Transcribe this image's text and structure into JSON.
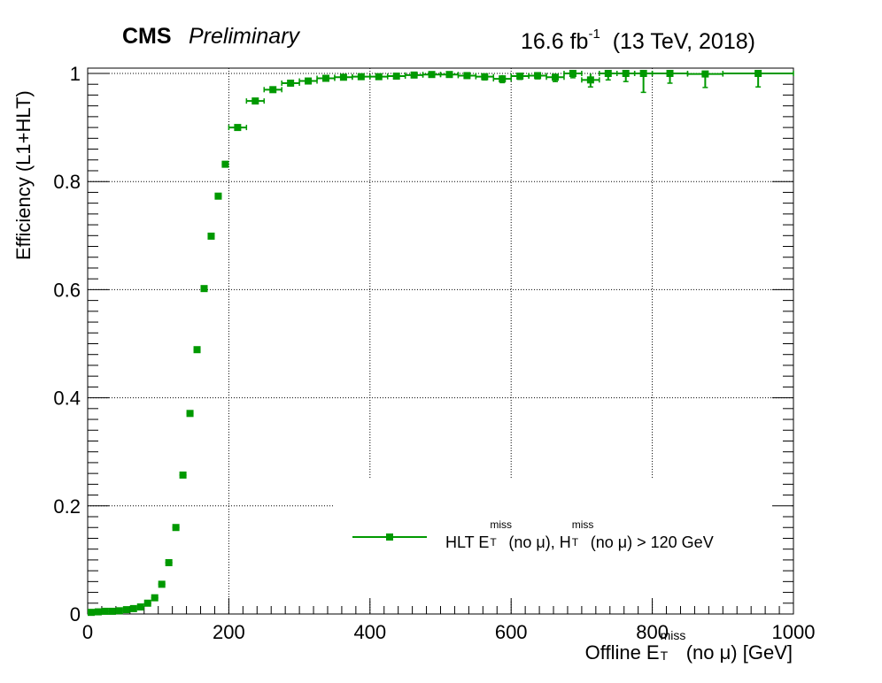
{
  "header": {
    "experiment": "CMS",
    "status": "Preliminary",
    "lumi_value": "16.6 fb",
    "lumi_exp": "-1",
    "energy": "(13 TeV, 2018)"
  },
  "axes": {
    "ylabel": "Efficiency (L1+HLT)",
    "xlabel_pre": "Offline E",
    "xlabel_sup": "miss",
    "xlabel_sub": "T",
    "xlabel_post": " (no μ) [GeV]"
  },
  "legend": {
    "part1": "HLT E",
    "sup1": "miss",
    "sub1": "T",
    "part2": "(no μ), H",
    "sup2": "miss",
    "sub2": "T",
    "part3": "(no μ) > 120 GeV"
  },
  "colors": {
    "series": "#009900",
    "grid": "#000000"
  },
  "chart_data": {
    "type": "scatter",
    "xlim": [
      0,
      1000
    ],
    "ylim": [
      0,
      1.0
    ],
    "xticks": [
      0,
      200,
      400,
      600,
      800,
      1000
    ],
    "yticks": [
      0,
      0.2,
      0.4,
      0.6,
      0.8,
      1
    ],
    "ytick_labels": [
      "0",
      "0.2",
      "0.4",
      "0.6",
      "0.8",
      "1"
    ],
    "grid": true,
    "legend_position": "lower-right",
    "series": [
      {
        "name": "HLT E_T^miss(no μ), H_T^miss(no μ) > 120 GeV",
        "color": "#009900",
        "x": [
          5,
          15,
          25,
          35,
          45,
          55,
          65,
          75,
          85,
          95,
          105,
          115,
          125,
          135,
          145,
          155,
          165,
          175,
          185,
          195,
          212.5,
          237.5,
          262.5,
          287.5,
          312.5,
          337.5,
          362.5,
          387.5,
          412.5,
          437.5,
          462.5,
          487.5,
          512.5,
          537.5,
          562.5,
          587.5,
          612.5,
          637.5,
          662.5,
          687.5,
          712.5,
          737.5,
          762.5,
          787.5,
          825,
          875,
          950
        ],
        "y": [
          0.003,
          0.004,
          0.005,
          0.005,
          0.006,
          0.008,
          0.01,
          0.013,
          0.02,
          0.03,
          0.055,
          0.095,
          0.16,
          0.257,
          0.371,
          0.489,
          0.602,
          0.699,
          0.773,
          0.832,
          0.9,
          0.949,
          0.97,
          0.982,
          0.986,
          0.991,
          0.993,
          0.994,
          0.994,
          0.995,
          0.997,
          0.998,
          0.998,
          0.996,
          0.994,
          0.99,
          0.995,
          0.996,
          0.993,
          1.0,
          0.988,
          1.0,
          1.0,
          1.0,
          1.0,
          0.999,
          1.0
        ],
        "xerr": [
          5,
          5,
          5,
          5,
          5,
          5,
          5,
          5,
          5,
          5,
          5,
          5,
          5,
          5,
          5,
          5,
          5,
          5,
          5,
          5,
          12.5,
          12.5,
          12.5,
          12.5,
          12.5,
          12.5,
          12.5,
          12.5,
          12.5,
          12.5,
          12.5,
          12.5,
          12.5,
          12.5,
          12.5,
          12.5,
          12.5,
          12.5,
          12.5,
          12.5,
          12.5,
          12.5,
          12.5,
          12.5,
          25,
          25,
          50
        ],
        "yerr": [
          0,
          0,
          0,
          0,
          0,
          0,
          0,
          0,
          0,
          0,
          0,
          0,
          0,
          0,
          0,
          0,
          0,
          0,
          0,
          0,
          0.004,
          0.004,
          0.003,
          0.004,
          0.004,
          0.004,
          0.004,
          0.004,
          0.004,
          0.004,
          0.004,
          0.004,
          0.004,
          0.005,
          0.006,
          0.007,
          0.006,
          0.006,
          0.008,
          0.008,
          0.013,
          0.012,
          0.015,
          0.035,
          0.018,
          0.025,
          0.025
        ]
      }
    ]
  }
}
